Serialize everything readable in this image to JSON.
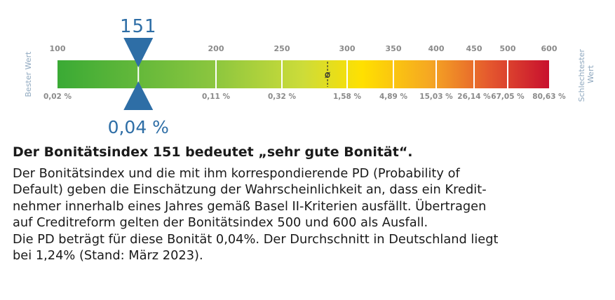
{
  "chart_data": {
    "type": "gauge",
    "scale_min": 100,
    "scale_max": 600,
    "label_best": "Bester Wert",
    "label_worst": "Schlechtester Wert",
    "label_worst_lines": [
      "Schlechtester",
      "Wert"
    ],
    "ticks": [
      {
        "index": 100,
        "pd": "0,02 %"
      },
      {
        "index": 200,
        "pd": "0,11 %"
      },
      {
        "index": 250,
        "pd": "0,32 %"
      },
      {
        "index": 300,
        "pd": "1,58 %"
      },
      {
        "index": 350,
        "pd": "4,89 %"
      },
      {
        "index": 400,
        "pd": "15,03 %"
      },
      {
        "index": 450,
        "pd": "26,14 %"
      },
      {
        "index": 500,
        "pd": "67,05 %"
      },
      {
        "index": 600,
        "pd": "80,63 %"
      }
    ],
    "average_symbol": "ø",
    "average_index": 285,
    "marker_index": 151,
    "marker_value_label": "151",
    "marker_pd_label": "0,04 %",
    "colors": {
      "gradient": [
        "#3aaa35",
        "#8cc63f",
        "#cddc39",
        "#ffe000",
        "#f5a623",
        "#e4572e",
        "#c8102e"
      ],
      "marker": "#2e6ea6",
      "tick_text": "#8a8a8a",
      "side_text": "#8fa8bf"
    }
  },
  "text": {
    "headline": "Der Bonitätsindex 151 bedeutet „sehr gute Bonität“.",
    "body_lines": [
      "Der Bonitätsindex und die mit ihm korrespondierende PD (Probability of",
      "Default) geben die Einschätzung der Wahrscheinlichkeit an, dass ein Kredit-",
      "nehmer innerhalb eines Jahres gemäß Basel II-Kriterien ausfällt. Übertragen",
      "auf Creditreform gelten der Bonitätsindex 500 und 600 als Ausfall.",
      "Die PD beträgt für diese Bonität 0,04%. Der Durchschnitt in Deutschland liegt",
      "bei 1,24% (Stand: März 2023)."
    ]
  }
}
